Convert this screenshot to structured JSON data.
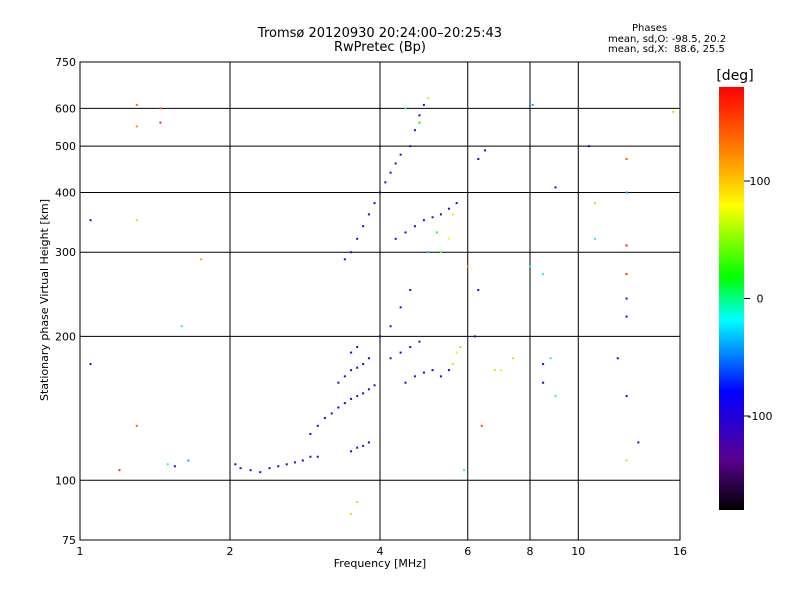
{
  "header": {
    "title_line1": "Tromsø 20120930 20:24:00–20:25:43",
    "title_line2": "RwPretec (Bp)"
  },
  "phase_box": {
    "heading": "Phases",
    "line_o": "mean, sd,O: -98.5, 20.2",
    "line_x": "mean, sd,X:  88.6, 25.5"
  },
  "colorbar": {
    "unit_label": "[deg]",
    "range": [
      -180,
      180
    ],
    "ticks": [
      100,
      0,
      -100
    ]
  },
  "chart_data": {
    "type": "scatter",
    "title": "Tromsø 20120930 20:24:00–20:25:43",
    "subtitle": "RwPretec (Bp)",
    "xlabel": "Frequency [MHz]",
    "ylabel": "Stationary phase Virtual Height [km]",
    "x_scale": "log",
    "y_scale": "log",
    "xlim": [
      1,
      16
    ],
    "ylim": [
      75,
      750
    ],
    "x_ticks": [
      1,
      2,
      4,
      6,
      8,
      10,
      16
    ],
    "y_ticks": [
      75,
      100,
      200,
      300,
      400,
      500,
      600,
      750
    ],
    "grid": true,
    "color_scale": "phase [deg]",
    "points": [
      [
        2.05,
        108,
        -110
      ],
      [
        2.1,
        106,
        -115
      ],
      [
        2.2,
        105,
        -120
      ],
      [
        2.3,
        104,
        -105
      ],
      [
        2.4,
        106,
        -110
      ],
      [
        2.5,
        107,
        -112
      ],
      [
        2.6,
        108,
        -108
      ],
      [
        2.7,
        109,
        -115
      ],
      [
        2.8,
        110,
        -100
      ],
      [
        2.9,
        112,
        -110
      ],
      [
        3.0,
        112,
        -118
      ],
      [
        2.9,
        125,
        -110
      ],
      [
        3.0,
        130,
        -105
      ],
      [
        3.1,
        135,
        -115
      ],
      [
        3.2,
        138,
        -110
      ],
      [
        3.3,
        142,
        -100
      ],
      [
        3.4,
        145,
        -112
      ],
      [
        3.5,
        148,
        -118
      ],
      [
        3.6,
        150,
        -108
      ],
      [
        3.7,
        152,
        -110
      ],
      [
        3.8,
        155,
        -95
      ],
      [
        3.9,
        158,
        -110
      ],
      [
        3.3,
        160,
        -110
      ],
      [
        3.4,
        165,
        -115
      ],
      [
        3.5,
        170,
        -120
      ],
      [
        3.6,
        172,
        -108
      ],
      [
        3.7,
        175,
        -112
      ],
      [
        3.8,
        180,
        -100
      ],
      [
        3.5,
        185,
        -110
      ],
      [
        3.6,
        190,
        -115
      ],
      [
        3.5,
        115,
        -110
      ],
      [
        3.6,
        117,
        -112
      ],
      [
        3.7,
        118,
        -115
      ],
      [
        3.8,
        120,
        -108
      ],
      [
        4.0,
        200,
        -110
      ],
      [
        4.2,
        210,
        -112
      ],
      [
        4.4,
        230,
        -108
      ],
      [
        4.6,
        250,
        -115
      ],
      [
        4.2,
        180,
        -110
      ],
      [
        4.4,
        185,
        -100
      ],
      [
        4.6,
        190,
        -112
      ],
      [
        4.8,
        195,
        -110
      ],
      [
        4.5,
        160,
        -110
      ],
      [
        4.7,
        165,
        -112
      ],
      [
        4.9,
        168,
        -115
      ],
      [
        5.1,
        170,
        -108
      ],
      [
        5.3,
        165,
        -110
      ],
      [
        5.5,
        170,
        -112
      ],
      [
        5.6,
        175,
        60
      ],
      [
        5.7,
        185,
        70
      ],
      [
        5.8,
        190,
        50
      ],
      [
        3.4,
        290,
        -110
      ],
      [
        3.5,
        300,
        -112
      ],
      [
        3.6,
        320,
        -115
      ],
      [
        3.7,
        340,
        -108
      ],
      [
        3.8,
        360,
        -110
      ],
      [
        3.9,
        380,
        -112
      ],
      [
        4.0,
        400,
        -110
      ],
      [
        4.1,
        420,
        -100
      ],
      [
        4.2,
        440,
        -112
      ],
      [
        4.3,
        460,
        -110
      ],
      [
        4.4,
        480,
        -108
      ],
      [
        4.6,
        500,
        -112
      ],
      [
        4.7,
        540,
        -110
      ],
      [
        4.8,
        580,
        -105
      ],
      [
        4.9,
        610,
        -112
      ],
      [
        5.0,
        630,
        60
      ],
      [
        4.5,
        600,
        -20
      ],
      [
        4.8,
        560,
        20
      ],
      [
        4.3,
        320,
        -110
      ],
      [
        4.5,
        330,
        -112
      ],
      [
        4.7,
        340,
        -108
      ],
      [
        4.9,
        350,
        -110
      ],
      [
        5.1,
        355,
        -112
      ],
      [
        5.3,
        360,
        -110
      ],
      [
        5.5,
        370,
        -108
      ],
      [
        5.7,
        380,
        -112
      ],
      [
        5.6,
        360,
        70
      ],
      [
        5.2,
        330,
        10
      ],
      [
        5.5,
        320,
        80
      ],
      [
        5.0,
        300,
        -30
      ],
      [
        5.3,
        300,
        40
      ],
      [
        1.05,
        350,
        -110
      ],
      [
        1.05,
        175,
        -110
      ],
      [
        1.3,
        610,
        140
      ],
      [
        1.3,
        550,
        120
      ],
      [
        1.45,
        600,
        140
      ],
      [
        1.45,
        560,
        170
      ],
      [
        1.3,
        350,
        100
      ],
      [
        1.65,
        110,
        -40
      ],
      [
        1.2,
        105,
        160
      ],
      [
        1.75,
        290,
        110
      ],
      [
        1.6,
        210,
        -20
      ],
      [
        1.3,
        130,
        140
      ],
      [
        1.5,
        108,
        -20
      ],
      [
        1.55,
        107,
        -100
      ],
      [
        8.1,
        610,
        -40
      ],
      [
        6.5,
        490,
        -110
      ],
      [
        6.3,
        470,
        -100
      ],
      [
        9.0,
        410,
        -110
      ],
      [
        8.0,
        280,
        -20
      ],
      [
        8.5,
        270,
        -20
      ],
      [
        8.8,
        180,
        -20
      ],
      [
        8.5,
        160,
        -100
      ],
      [
        9.0,
        150,
        -20
      ],
      [
        10.5,
        500,
        -110
      ],
      [
        12.5,
        470,
        140
      ],
      [
        12.5,
        400,
        -40
      ],
      [
        12.5,
        310,
        170
      ],
      [
        12.5,
        270,
        160
      ],
      [
        12.5,
        240,
        -110
      ],
      [
        12.5,
        220,
        -110
      ],
      [
        12.0,
        180,
        -110
      ],
      [
        12.5,
        150,
        -110
      ],
      [
        12.5,
        110,
        100
      ],
      [
        13.2,
        120,
        -110
      ],
      [
        15.5,
        590,
        100
      ],
      [
        10.8,
        380,
        100
      ],
      [
        10.8,
        320,
        -20
      ],
      [
        6.8,
        170,
        60
      ],
      [
        7.0,
        170,
        70
      ],
      [
        7.4,
        180,
        100
      ],
      [
        8.5,
        175,
        -110
      ],
      [
        6.4,
        130,
        150
      ],
      [
        6.2,
        200,
        -110
      ],
      [
        6.3,
        250,
        -110
      ],
      [
        6.0,
        280,
        120
      ],
      [
        5.9,
        105,
        -20
      ],
      [
        3.6,
        90,
        100
      ],
      [
        3.5,
        85,
        100
      ]
    ]
  }
}
